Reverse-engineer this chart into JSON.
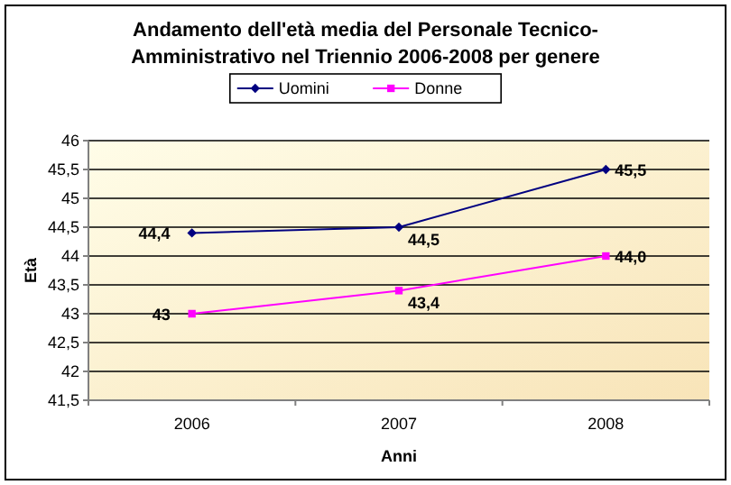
{
  "chart_data": {
    "type": "line",
    "title": "Andamento dell'età media del Personale Tecnico-Amministrativo nel Triennio 2006-2008 per genere",
    "xlabel": "Anni",
    "ylabel": "Età",
    "categories": [
      "2006",
      "2007",
      "2008"
    ],
    "series": [
      {
        "name": "Uomini",
        "color": "#000080",
        "marker": "diamond",
        "values": [
          44.4,
          44.5,
          45.5
        ],
        "value_labels": [
          "44,4",
          "44,5",
          "45,5"
        ]
      },
      {
        "name": "Donne",
        "color": "#ff00ff",
        "marker": "square",
        "values": [
          43,
          43.4,
          44.0
        ],
        "value_labels": [
          "43",
          "43,4",
          "44,0"
        ]
      }
    ],
    "ylim": [
      41.5,
      46
    ],
    "yticks": [
      {
        "value": 41.5,
        "label": "41,5"
      },
      42,
      {
        "value": 42.5,
        "label": "42,5"
      },
      43,
      {
        "value": 43.5,
        "label": "43,5"
      },
      44,
      {
        "value": 44.5,
        "label": "44,5"
      },
      45,
      {
        "value": 45.5,
        "label": "45,5"
      },
      46
    ],
    "grid": "y",
    "legend": "top"
  }
}
